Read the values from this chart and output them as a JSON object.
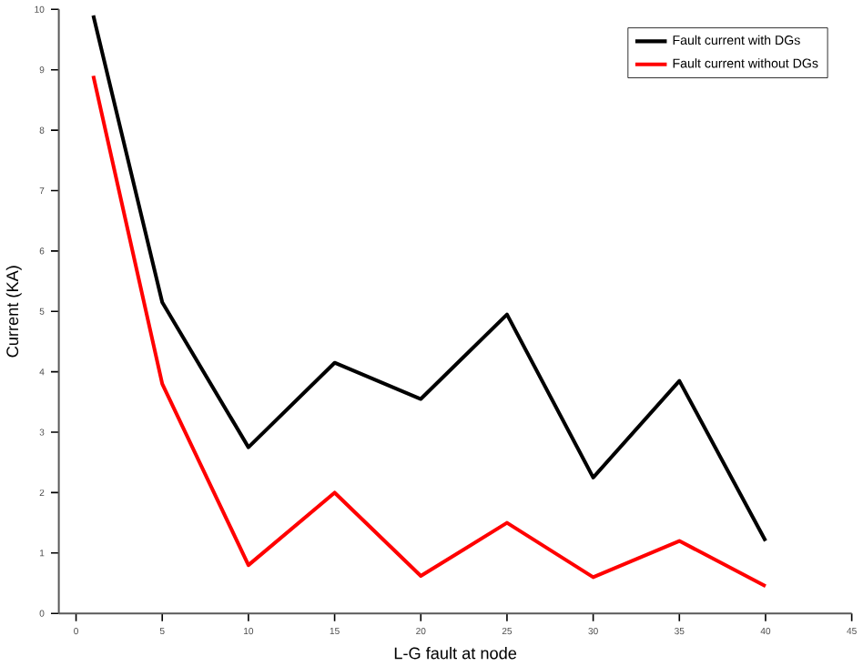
{
  "chart_data": {
    "type": "line",
    "xlabel": "L-G fault at node",
    "ylabel": "Current (KA)",
    "x": [
      1,
      5,
      10,
      15,
      20,
      25,
      30,
      35,
      40
    ],
    "series": [
      {
        "name": "Fault current with DGs",
        "color": "#000000",
        "values": [
          9.9,
          5.15,
          2.75,
          4.15,
          3.55,
          4.95,
          2.25,
          3.85,
          1.2
        ]
      },
      {
        "name": "Fault current without DGs",
        "color": "#ff0000",
        "values": [
          8.9,
          3.8,
          0.8,
          2.0,
          0.62,
          1.5,
          0.6,
          1.2,
          0.45
        ]
      }
    ],
    "xlim": [
      -1,
      45
    ],
    "ylim": [
      0,
      10
    ],
    "xticks": [
      0,
      5,
      10,
      15,
      20,
      25,
      30,
      35,
      40,
      45
    ],
    "yticks": [
      0,
      1,
      2,
      3,
      4,
      5,
      6,
      7,
      8,
      9,
      10
    ],
    "legend": "top right",
    "grid": false,
    "marker": "none",
    "line_style": "solid"
  }
}
